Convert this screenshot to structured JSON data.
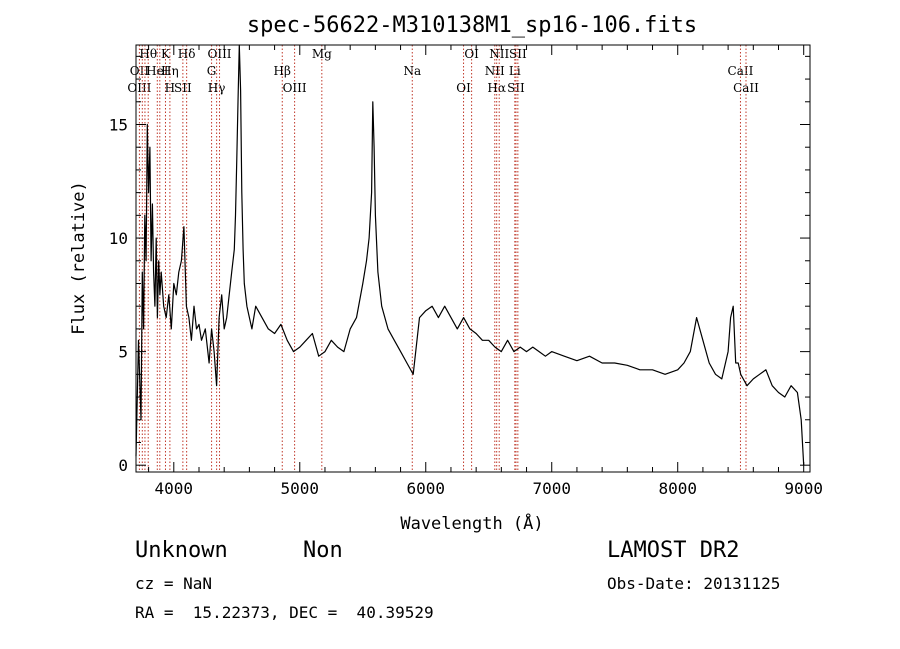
{
  "chart_data": {
    "type": "line",
    "title": "spec-56622-M310138M1_sp16-106.fits",
    "xlabel": "Wavelength (Å)",
    "ylabel": "Flux (relative)",
    "xlim": [
      3700,
      9050
    ],
    "ylim": [
      -0.3,
      18.5
    ],
    "x_ticks": [
      4000,
      5000,
      6000,
      7000,
      8000,
      9000
    ],
    "x_tick_labels": [
      "4000",
      "5000",
      "6000",
      "7000",
      "8000",
      "9000"
    ],
    "y_ticks": [
      0,
      5,
      10,
      15
    ],
    "y_tick_labels": [
      "0",
      "5",
      "10",
      "15"
    ],
    "grid": false,
    "line_color": "#000000",
    "marker_color": "#c0392b",
    "series": [
      {
        "x": [
          3700,
          3720,
          3740,
          3750,
          3760,
          3770,
          3780,
          3790,
          3800,
          3810,
          3820,
          3830,
          3840,
          3850,
          3860,
          3870,
          3880,
          3890,
          3900,
          3920,
          3940,
          3960,
          3980,
          4000,
          4020,
          4040,
          4060,
          4080,
          4100,
          4120,
          4140,
          4160,
          4180,
          4200,
          4220,
          4250,
          4280,
          4300,
          4320,
          4340,
          4360,
          4380,
          4400,
          4420,
          4440,
          4460,
          4480,
          4490,
          4500,
          4510,
          4520,
          4530,
          4540,
          4550,
          4560,
          4580,
          4600,
          4620,
          4650,
          4700,
          4750,
          4800,
          4850,
          4900,
          4950,
          5000,
          5050,
          5100,
          5150,
          5200,
          5250,
          5300,
          5350,
          5400,
          5450,
          5500,
          5530,
          5550,
          5570,
          5580,
          5590,
          5600,
          5620,
          5650,
          5700,
          5750,
          5800,
          5850,
          5900,
          5950,
          6000,
          6050,
          6100,
          6150,
          6200,
          6250,
          6300,
          6350,
          6400,
          6450,
          6500,
          6550,
          6600,
          6650,
          6700,
          6750,
          6800,
          6850,
          6900,
          6950,
          7000,
          7100,
          7200,
          7300,
          7400,
          7500,
          7600,
          7700,
          7800,
          7900,
          8000,
          8050,
          8100,
          8150,
          8200,
          8250,
          8300,
          8350,
          8400,
          8420,
          8440,
          8460,
          8480,
          8500,
          8550,
          8600,
          8650,
          8700,
          8750,
          8800,
          8850,
          8900,
          8950,
          8980,
          9000
        ],
        "y": [
          0.4,
          5.5,
          2.0,
          8.5,
          6.0,
          11.0,
          9.0,
          15.0,
          12.0,
          14.0,
          9.0,
          11.5,
          8.5,
          7.0,
          10.0,
          6.5,
          9.0,
          7.5,
          8.5,
          7.0,
          6.5,
          7.5,
          6.0,
          8.0,
          7.5,
          8.5,
          9.0,
          10.5,
          7.0,
          6.5,
          5.5,
          7.0,
          6.0,
          6.2,
          5.5,
          6.0,
          4.5,
          6.0,
          5.0,
          3.5,
          6.5,
          7.5,
          6.0,
          6.5,
          7.5,
          8.5,
          9.5,
          11.0,
          13.5,
          16.0,
          18.5,
          16.5,
          12.0,
          9.5,
          8.0,
          7.0,
          6.5,
          6.0,
          7.0,
          6.5,
          6.0,
          5.8,
          6.2,
          5.5,
          5.0,
          5.2,
          5.5,
          5.8,
          4.8,
          5.0,
          5.5,
          5.2,
          5.0,
          6.0,
          6.5,
          8.0,
          9.0,
          10.0,
          12.0,
          16.0,
          14.0,
          11.0,
          8.5,
          7.0,
          6.0,
          5.5,
          5.0,
          4.5,
          4.0,
          6.5,
          6.8,
          7.0,
          6.5,
          7.0,
          6.5,
          6.0,
          6.5,
          6.0,
          5.8,
          5.5,
          5.5,
          5.2,
          5.0,
          5.5,
          5.0,
          5.2,
          5.0,
          5.2,
          5.0,
          4.8,
          5.0,
          4.8,
          4.6,
          4.8,
          4.5,
          4.5,
          4.4,
          4.2,
          4.2,
          4.0,
          4.2,
          4.5,
          5.0,
          6.5,
          5.5,
          4.5,
          4.0,
          3.8,
          5.0,
          6.5,
          7.0,
          4.5,
          4.5,
          4.0,
          3.5,
          3.8,
          4.0,
          4.2,
          3.5,
          3.2,
          3.0,
          3.5,
          3.2,
          2.0,
          0.0
        ]
      }
    ],
    "line_markers": [
      {
        "x": 3727,
        "labels": [
          "OII",
          "OIII"
        ]
      },
      {
        "x": 3750,
        "labels": [],
        "group": 3
      },
      {
        "x": 3771,
        "labels": [],
        "group": 3
      },
      {
        "x": 3797,
        "labels": [
          "Hθ"
        ]
      },
      {
        "x": 3869,
        "labels": [
          "HeI"
        ]
      },
      {
        "x": 3889,
        "labels": [],
        "group": 1
      },
      {
        "x": 3934,
        "labels": [
          "K"
        ]
      },
      {
        "x": 3969,
        "labels": [
          "Hη",
          "H"
        ]
      },
      {
        "x": 4072,
        "labels": [
          "SII"
        ]
      },
      {
        "x": 4102,
        "labels": [
          "Hδ"
        ]
      },
      {
        "x": 4300,
        "labels": [
          "G"
        ]
      },
      {
        "x": 4340,
        "labels": [
          "Hγ"
        ]
      },
      {
        "x": 4363,
        "labels": [
          "OIII"
        ]
      },
      {
        "x": 4861,
        "labels": [
          "Hβ"
        ]
      },
      {
        "x": 4959,
        "labels": [
          "OIII"
        ]
      },
      {
        "x": 5175,
        "labels": [
          "Mg"
        ]
      },
      {
        "x": 5893,
        "labels": [
          "Na"
        ]
      },
      {
        "x": 6300,
        "labels": [
          "OI"
        ]
      },
      {
        "x": 6364,
        "labels": [
          "OI"
        ]
      },
      {
        "x": 6548,
        "labels": [
          "NII"
        ]
      },
      {
        "x": 6563,
        "labels": [
          "Hα"
        ]
      },
      {
        "x": 6583,
        "labels": [
          "NII"
        ]
      },
      {
        "x": 6707,
        "labels": [
          "Li"
        ]
      },
      {
        "x": 6716,
        "labels": [
          "SII"
        ]
      },
      {
        "x": 6731,
        "labels": [
          "SII"
        ]
      },
      {
        "x": 8498,
        "labels": [
          "CaII"
        ]
      },
      {
        "x": 8542,
        "labels": [
          "CaII"
        ]
      }
    ]
  },
  "info": {
    "class": "Unknown",
    "subclass": "Non",
    "survey": "LAMOST DR2",
    "cz": "cz = NaN",
    "obs_date": "Obs-Date: 20131125",
    "coords": "RA =  15.22373, DEC =  40.39529"
  }
}
